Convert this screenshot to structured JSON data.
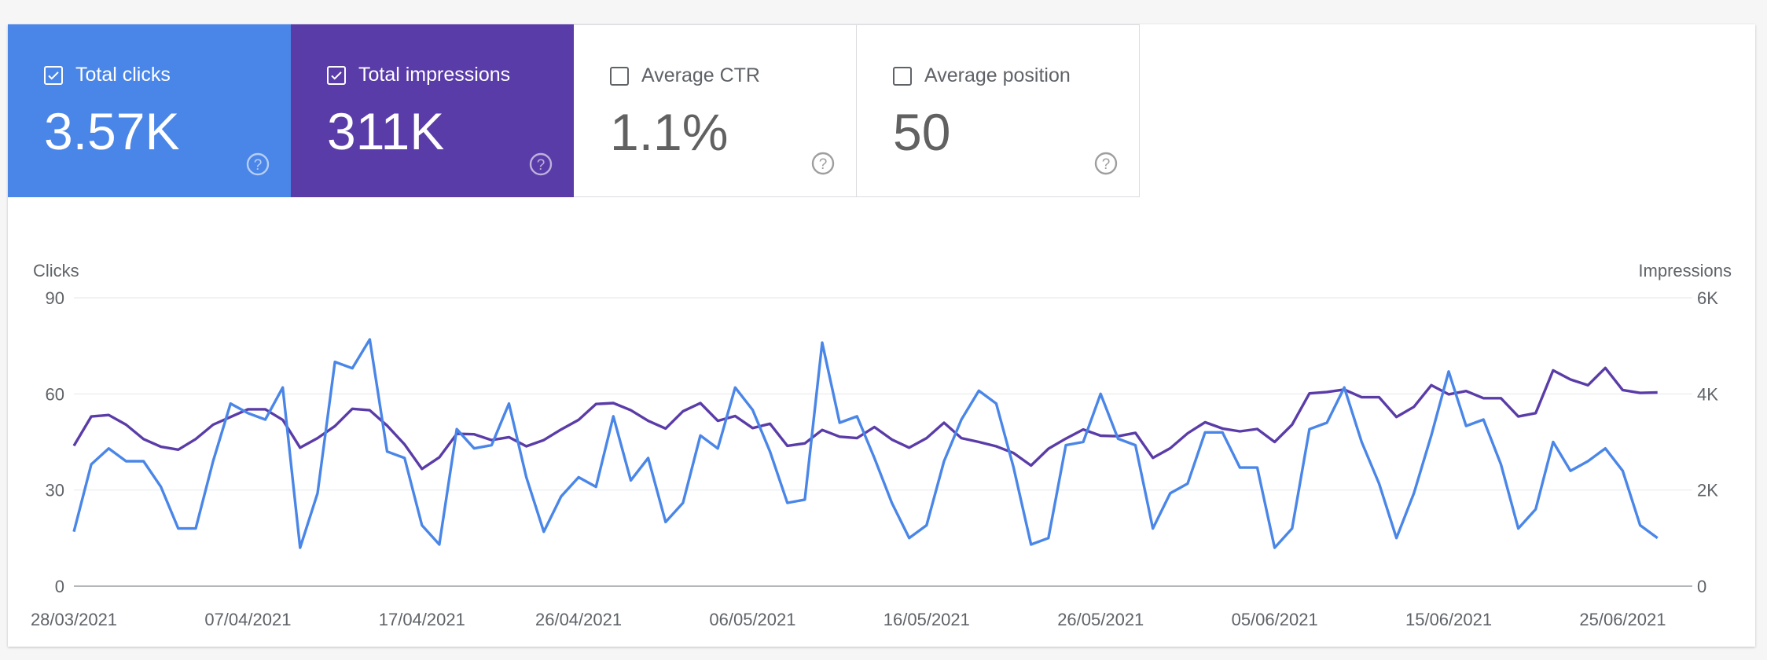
{
  "tiles": [
    {
      "label": "Total clicks",
      "value": "3.57K",
      "checked": true,
      "color": "#4a86e8"
    },
    {
      "label": "Total impressions",
      "value": "311K",
      "checked": true,
      "color": "#5a3ca8"
    },
    {
      "label": "Average CTR",
      "value": "1.1%",
      "checked": false,
      "color": "#ffffff"
    },
    {
      "label": "Average position",
      "value": "50",
      "checked": false,
      "color": "#ffffff"
    }
  ],
  "icons": {
    "checkbox": "check-icon",
    "help": "help-circle-icon"
  },
  "chart_data": {
    "type": "line",
    "left_axis_title": "Clicks",
    "right_axis_title": "Impressions",
    "left_ylim": [
      0,
      90
    ],
    "right_ylim": [
      0,
      6000
    ],
    "left_ticks": [
      "0",
      "30",
      "60",
      "90"
    ],
    "right_ticks": [
      "0",
      "2K",
      "4K",
      "6K"
    ],
    "x_tick_labels": [
      "28/03/2021",
      "07/04/2021",
      "17/04/2021",
      "26/04/2021",
      "06/05/2021",
      "16/05/2021",
      "26/05/2021",
      "05/06/2021",
      "15/06/2021",
      "25/06/2021"
    ],
    "x_start": "28/03/2021",
    "x_end": "29/06/2021",
    "grid": true,
    "series": [
      {
        "name": "Clicks",
        "axis": "left",
        "color": "#4a86e8",
        "values": [
          17,
          38,
          43,
          39,
          39,
          31,
          18,
          18,
          39,
          57,
          54,
          52,
          62,
          12,
          29,
          70,
          68,
          77,
          42,
          40,
          19,
          13,
          49,
          43,
          44,
          57,
          34,
          17,
          28,
          34,
          31,
          53,
          33,
          40,
          20,
          26,
          47,
          43,
          62,
          55,
          42,
          26,
          27,
          76,
          51,
          53,
          40,
          26,
          15,
          19,
          39,
          52,
          61,
          57,
          37,
          13,
          15,
          44,
          45,
          60,
          46,
          44,
          18,
          29,
          32,
          48,
          48,
          37,
          37,
          12,
          18,
          49,
          51,
          62,
          45,
          32,
          15,
          29,
          47,
          67,
          50,
          52,
          38,
          18,
          24,
          45,
          36,
          39,
          43,
          36,
          19,
          15
        ]
      },
      {
        "name": "Impressions",
        "axis": "right",
        "color": "#5a3ca8",
        "values": [
          2920,
          3530,
          3560,
          3360,
          3060,
          2900,
          2840,
          3060,
          3360,
          3520,
          3680,
          3680,
          3460,
          2880,
          3080,
          3330,
          3690,
          3660,
          3340,
          2950,
          2440,
          2680,
          3170,
          3160,
          3040,
          3100,
          2910,
          3040,
          3260,
          3460,
          3790,
          3810,
          3660,
          3440,
          3280,
          3640,
          3810,
          3440,
          3540,
          3290,
          3380,
          2920,
          2970,
          3250,
          3110,
          3080,
          3310,
          3050,
          2880,
          3080,
          3400,
          3080,
          3000,
          2910,
          2770,
          2510,
          2860,
          3070,
          3260,
          3130,
          3120,
          3190,
          2670,
          2870,
          3180,
          3410,
          3280,
          3220,
          3270,
          3000,
          3360,
          4010,
          4040,
          4090,
          3930,
          3930,
          3520,
          3730,
          4180,
          3990,
          4060,
          3910,
          3910,
          3530,
          3600,
          4490,
          4300,
          4180,
          4540,
          4080,
          4020,
          4030
        ]
      }
    ]
  }
}
